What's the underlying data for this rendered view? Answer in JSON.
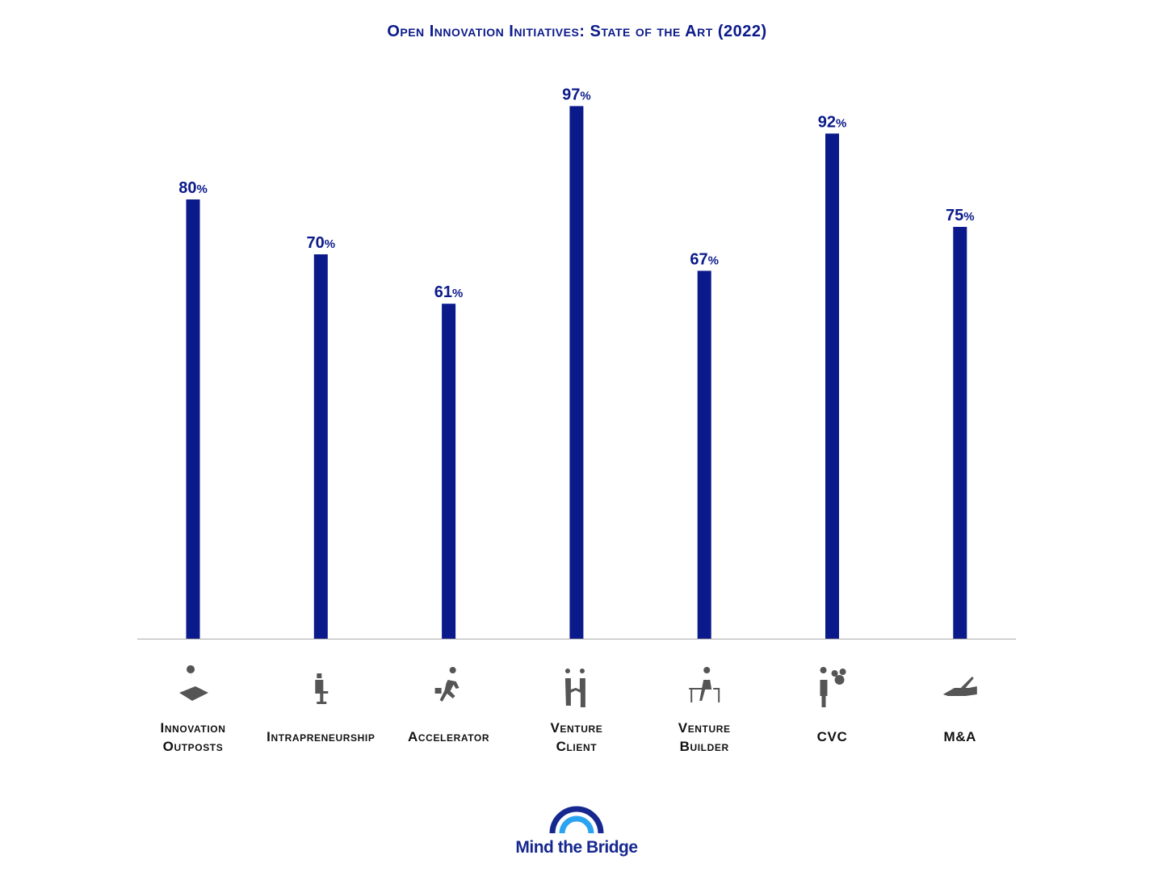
{
  "chart_data": {
    "type": "bar",
    "title": "Open Innovation Initiatives: State of the Art (2022)",
    "categories": [
      "Innovation Outposts",
      "Intrapreneurship",
      "Accelerator",
      "Venture Client",
      "Venture Builder",
      "CVC",
      "M&A"
    ],
    "category_lines": [
      [
        "Innovation",
        "Outposts"
      ],
      [
        "Intrapreneurship"
      ],
      [
        "Accelerator"
      ],
      [
        "Venture",
        "Client"
      ],
      [
        "Venture",
        "Builder"
      ],
      [
        "CVC"
      ],
      [
        "M&A"
      ]
    ],
    "icons": [
      "map-pin-icon",
      "standing-desk-worker-icon",
      "running-businessman-icon",
      "handshake-icon",
      "desk-worker-icon",
      "businessman-money-icon",
      "signing-hand-icon"
    ],
    "values": [
      80,
      70,
      61,
      97,
      67,
      92,
      75
    ],
    "value_suffix": "%",
    "ylim": [
      0,
      100
    ],
    "grid": false,
    "bar_color": "#0b1a8a",
    "xlabel": "",
    "ylabel": ""
  },
  "logo": {
    "text": "Mind the Bridge",
    "colors": [
      "#16288f",
      "#2aa3f0"
    ]
  }
}
